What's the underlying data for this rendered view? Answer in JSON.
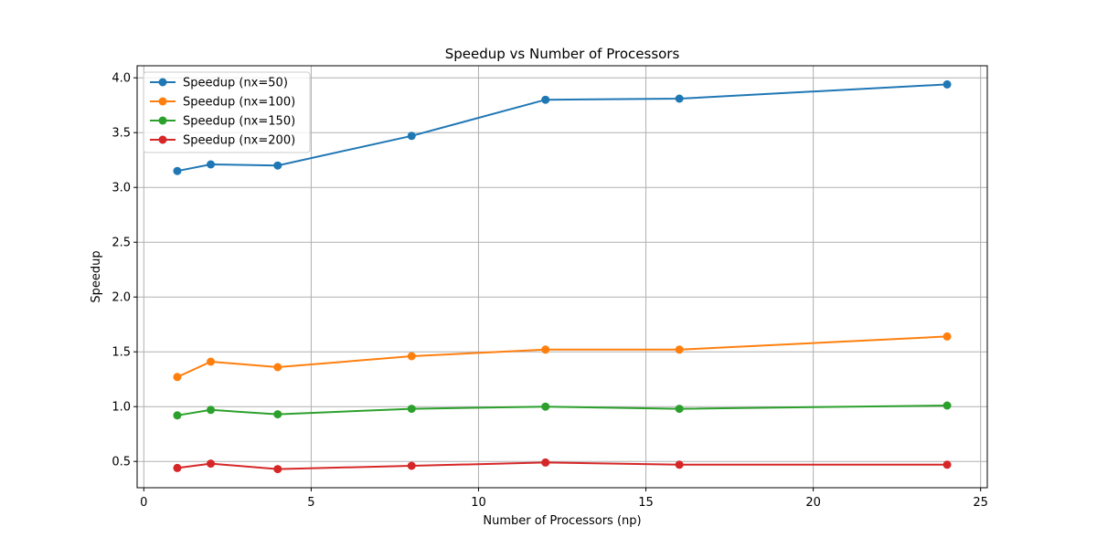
{
  "chart_data": {
    "type": "line",
    "title": "Speedup vs Number of Processors",
    "xlabel": "Number of Processors (np)",
    "ylabel": "Speedup",
    "xlim": [
      -0.2,
      25.2
    ],
    "ylim": [
      0.26,
      4.11
    ],
    "xticks": [
      0,
      5,
      10,
      15,
      20,
      25
    ],
    "yticks": [
      0.5,
      1.0,
      1.5,
      2.0,
      2.5,
      3.0,
      3.5,
      4.0
    ],
    "grid": true,
    "legend_position": "top-left",
    "x": [
      1,
      2,
      4,
      8,
      12,
      16,
      24
    ],
    "series": [
      {
        "name": "Speedup (nx=50)",
        "color": "#1f77b4",
        "values": [
          3.15,
          3.21,
          3.2,
          3.47,
          3.8,
          3.81,
          3.94
        ]
      },
      {
        "name": "Speedup (nx=100)",
        "color": "#ff7f0e",
        "values": [
          1.27,
          1.41,
          1.36,
          1.46,
          1.52,
          1.52,
          1.64
        ]
      },
      {
        "name": "Speedup (nx=150)",
        "color": "#2ca02c",
        "values": [
          0.92,
          0.97,
          0.93,
          0.98,
          1.0,
          0.98,
          1.01
        ]
      },
      {
        "name": "Speedup (nx=200)",
        "color": "#d62728",
        "values": [
          0.44,
          0.48,
          0.43,
          0.46,
          0.49,
          0.47,
          0.47
        ]
      }
    ]
  }
}
